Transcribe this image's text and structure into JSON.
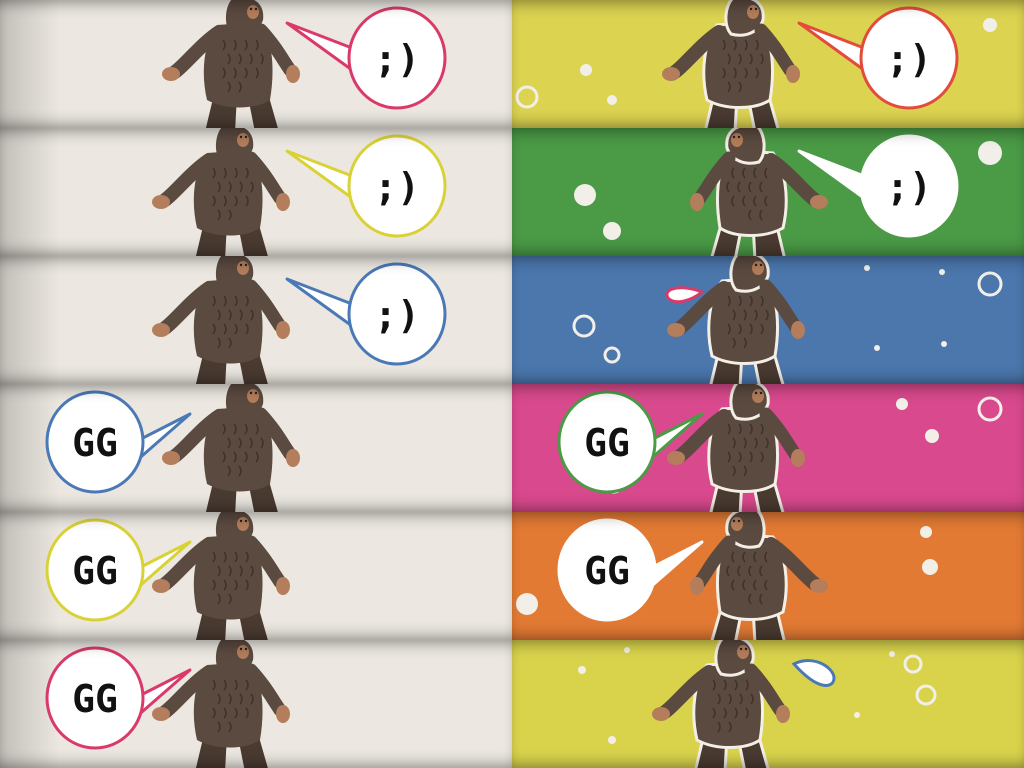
{
  "tiles": [
    {
      "id": "light-wink-pink",
      "bg": "#ece8e1",
      "theme": "light",
      "text": ";)",
      "accent": "#d93a6a",
      "bubble": "right"
    },
    {
      "id": "color-wink-yellow",
      "bg": "#dcd351",
      "theme": "color",
      "text": ";)",
      "accent": "#e34b3c",
      "bubble": "right"
    },
    {
      "id": "light-wink-yellow",
      "bg": "#ece8e1",
      "theme": "light",
      "text": ";)",
      "accent": "#d8d237",
      "bubble": "right"
    },
    {
      "id": "color-wink-green",
      "bg": "#4a9a46",
      "theme": "color",
      "text": ";)",
      "accent": "#ffffff",
      "bubble": "right"
    },
    {
      "id": "light-wink-blue",
      "bg": "#ece8e1",
      "theme": "light",
      "text": ";)",
      "accent": "#4a79b6",
      "bubble": "right"
    },
    {
      "id": "color-blue",
      "bg": "#4b77ad",
      "theme": "color",
      "text": "",
      "accent": "#d93a6a",
      "bubble": "drop-left"
    },
    {
      "id": "light-gg-blue",
      "bg": "#ece8e1",
      "theme": "light",
      "text": "GG",
      "accent": "#4a79b6",
      "bubble": "left"
    },
    {
      "id": "color-gg-pink",
      "bg": "#d9498d",
      "theme": "color",
      "text": "GG",
      "accent": "#4a9a46",
      "bubble": "left"
    },
    {
      "id": "light-gg-yellow",
      "bg": "#ece8e1",
      "theme": "light",
      "text": "GG",
      "accent": "#d8d237",
      "bubble": "left"
    },
    {
      "id": "color-gg-orange",
      "bg": "#e27a34",
      "theme": "color",
      "text": "GG",
      "accent": "#ffffff",
      "bubble": "left"
    },
    {
      "id": "light-gg-pink",
      "bg": "#ece8e1",
      "theme": "light",
      "text": "GG",
      "accent": "#d93a6a",
      "bubble": "left"
    },
    {
      "id": "color-yellow",
      "bg": "#d9d34c",
      "theme": "color",
      "text": "",
      "accent": "#4a79b6",
      "bubble": "drop-right"
    }
  ]
}
